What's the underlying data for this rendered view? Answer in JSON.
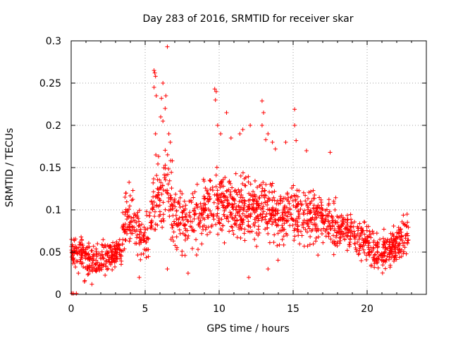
{
  "chart_data": {
    "type": "scatter",
    "title": "Day 283 of 2016, SRMTID for receiver skar",
    "xlabel": "GPS time / hours",
    "ylabel": "SRMTID / TECUs",
    "xlim": [
      0,
      24
    ],
    "ylim": [
      0,
      0.3
    ],
    "xticks": [
      0,
      5,
      10,
      15,
      20
    ],
    "xtick_labels": [
      "0",
      "5",
      "10",
      "15",
      "20"
    ],
    "yticks": [
      0,
      0.05,
      0.1,
      0.15,
      0.2,
      0.25,
      0.3
    ],
    "ytick_labels": [
      "0",
      "0.05",
      "0.1",
      "0.15",
      "0.2",
      "0.25",
      "0.3"
    ],
    "grid": true,
    "marker": "+",
    "marker_color": "#ff0000",
    "series": [
      {
        "name": "SRMTID",
        "trend": [
          [
            0.0,
            0.052
          ],
          [
            0.5,
            0.05
          ],
          [
            1.0,
            0.04
          ],
          [
            1.5,
            0.04
          ],
          [
            2.0,
            0.042
          ],
          [
            2.5,
            0.045
          ],
          [
            3.0,
            0.048
          ],
          [
            3.4,
            0.05
          ],
          [
            3.6,
            0.085
          ],
          [
            4.0,
            0.1
          ],
          [
            4.5,
            0.075
          ],
          [
            5.0,
            0.06
          ],
          [
            5.5,
            0.1
          ],
          [
            6.0,
            0.12
          ],
          [
            6.5,
            0.12
          ],
          [
            7.0,
            0.09
          ],
          [
            7.5,
            0.085
          ],
          [
            8.0,
            0.09
          ],
          [
            9.0,
            0.1
          ],
          [
            10.0,
            0.11
          ],
          [
            11.0,
            0.1
          ],
          [
            12.0,
            0.1
          ],
          [
            13.0,
            0.1
          ],
          [
            14.0,
            0.09
          ],
          [
            15.0,
            0.1
          ],
          [
            16.0,
            0.09
          ],
          [
            17.0,
            0.09
          ],
          [
            18.0,
            0.08
          ],
          [
            19.0,
            0.075
          ],
          [
            20.0,
            0.06
          ],
          [
            20.5,
            0.05
          ],
          [
            21.0,
            0.05
          ],
          [
            22.0,
            0.06
          ],
          [
            22.8,
            0.07
          ]
        ],
        "spread": [
          [
            0.0,
            0.02
          ],
          [
            3.4,
            0.015
          ],
          [
            3.6,
            0.03
          ],
          [
            5.0,
            0.025
          ],
          [
            6.0,
            0.04
          ],
          [
            9.0,
            0.035
          ],
          [
            15.0,
            0.03
          ],
          [
            19.0,
            0.02
          ],
          [
            22.8,
            0.02
          ]
        ],
        "n_points": 1700,
        "x_range": [
          0,
          22.8
        ],
        "outliers": [
          [
            0.05,
            0.001
          ],
          [
            0.15,
            0.001
          ],
          [
            0.35,
            0.001
          ],
          [
            6.5,
            0.293
          ],
          [
            5.6,
            0.265
          ],
          [
            5.65,
            0.262
          ],
          [
            5.7,
            0.258
          ],
          [
            5.6,
            0.245
          ],
          [
            5.75,
            0.235
          ],
          [
            6.2,
            0.25
          ],
          [
            6.1,
            0.232
          ],
          [
            6.4,
            0.235
          ],
          [
            6.35,
            0.22
          ],
          [
            6.05,
            0.21
          ],
          [
            6.2,
            0.205
          ],
          [
            5.7,
            0.19
          ],
          [
            6.6,
            0.19
          ],
          [
            6.7,
            0.18
          ],
          [
            9.7,
            0.243
          ],
          [
            9.8,
            0.24
          ],
          [
            9.75,
            0.23
          ],
          [
            9.9,
            0.2
          ],
          [
            10.1,
            0.19
          ],
          [
            10.5,
            0.215
          ],
          [
            10.8,
            0.185
          ],
          [
            12.1,
            0.2
          ],
          [
            12.9,
            0.229
          ],
          [
            13.0,
            0.215
          ],
          [
            12.9,
            0.2
          ],
          [
            13.15,
            0.183
          ],
          [
            13.3,
            0.19
          ],
          [
            13.6,
            0.18
          ],
          [
            13.8,
            0.172
          ],
          [
            14.5,
            0.18
          ],
          [
            15.1,
            0.219
          ],
          [
            15.1,
            0.2
          ],
          [
            15.2,
            0.182
          ],
          [
            15.9,
            0.17
          ],
          [
            11.6,
            0.195
          ],
          [
            11.4,
            0.19
          ],
          [
            17.5,
            0.168
          ],
          [
            12.0,
            0.02
          ],
          [
            13.3,
            0.03
          ],
          [
            6.5,
            0.03
          ],
          [
            4.6,
            0.02
          ],
          [
            0.9,
            0.015
          ],
          [
            1.4,
            0.012
          ],
          [
            7.9,
            0.025
          ]
        ]
      }
    ]
  }
}
